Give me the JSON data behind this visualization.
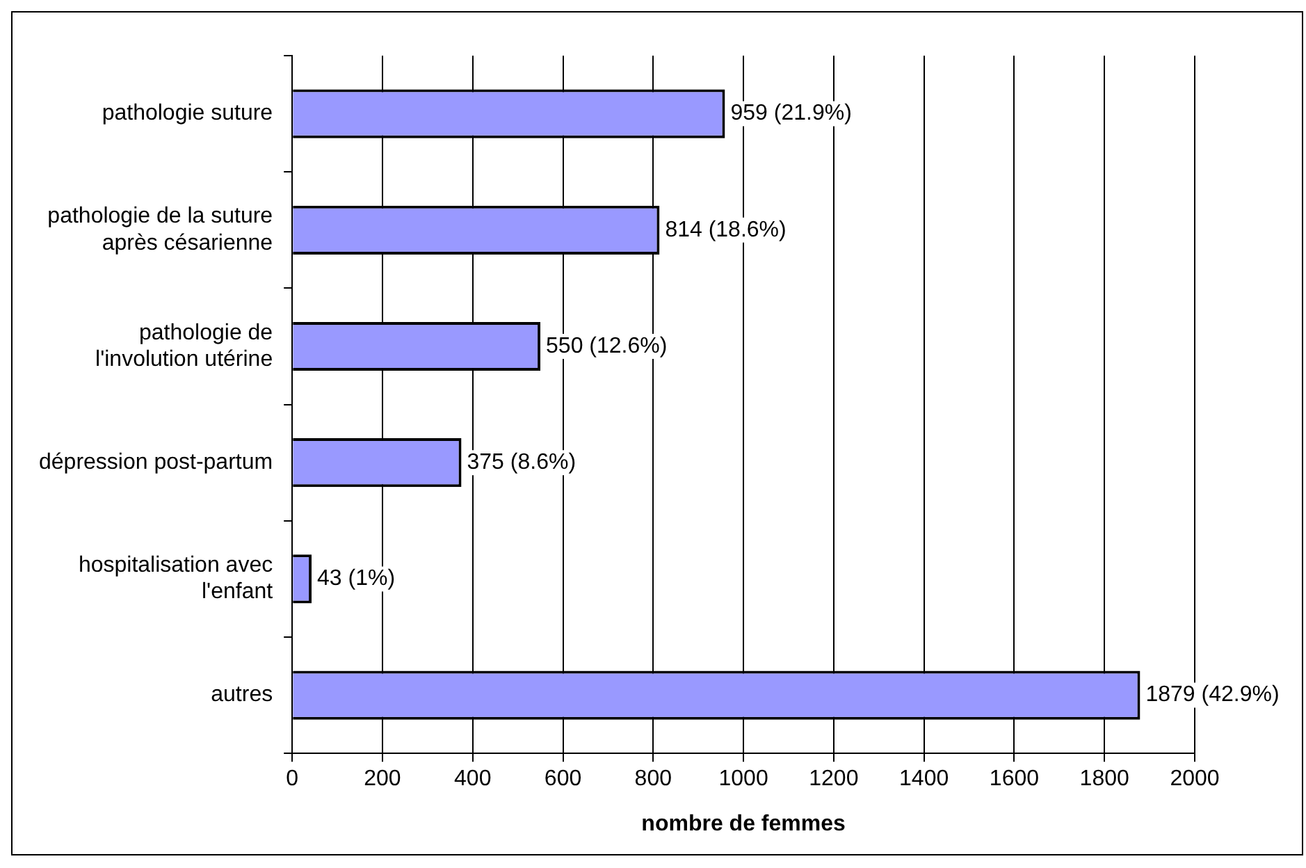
{
  "chart_data": {
    "type": "bar",
    "orientation": "horizontal",
    "xlabel": "nombre de femmes",
    "categories": [
      "pathologie suture",
      "pathologie de la suture\naprès césarienne",
      "pathologie de\nl'involution utérine",
      "dépression post-partum",
      "hospitalisation avec\nl'enfant",
      "autres"
    ],
    "values": [
      959,
      814,
      550,
      375,
      43,
      1879
    ],
    "value_labels": [
      "959 (21.9%)",
      "814 (18.6%)",
      "550 (12.6%)",
      "375 (8.6%)",
      "43 (1%)",
      "1879 (42.9%)"
    ],
    "color": "#9999ff",
    "xlim": [
      0,
      2000
    ],
    "xticks": [
      0,
      200,
      400,
      600,
      800,
      1000,
      1200,
      1400,
      1600,
      1800,
      2000
    ],
    "grid": "x",
    "legend": false
  }
}
